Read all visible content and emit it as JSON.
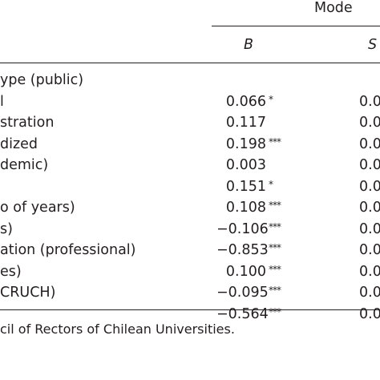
{
  "header": {
    "model_label": "Mode",
    "col_b": "B",
    "col_se": "S"
  },
  "rows": [
    {
      "label": "ype (public)",
      "b": "",
      "stars": "",
      "se": ""
    },
    {
      "label": "l",
      "b": "0.066",
      "stars": "*",
      "se": "0.0"
    },
    {
      "label": "stration",
      "b": "0.117",
      "stars": "",
      "se": "0.0"
    },
    {
      "label": "dized",
      "b": "0.198",
      "stars": "***",
      "se": "0.0"
    },
    {
      "label": "demic)",
      "b": "0.003",
      "stars": "",
      "se": "0.0"
    },
    {
      "label": "",
      "b": "0.151",
      "stars": "*",
      "se": "0.0"
    },
    {
      "label": "o of years)",
      "b": "0.108",
      "stars": "***",
      "se": "0.0"
    },
    {
      "label": "s)",
      "b": "−0.106",
      "stars": "***",
      "se": "0.0"
    },
    {
      "label": "ation (professional)",
      "b": "−0.853",
      "stars": "***",
      "se": "0.0"
    },
    {
      "label": "es)",
      "b": "0.100",
      "stars": "***",
      "se": "0.0"
    },
    {
      "label": "CRUCH)",
      "b": "−0.095",
      "stars": "***",
      "se": "0.0"
    },
    {
      "label": "",
      "b": "−0.564",
      "stars": "***",
      "se": "0.0"
    }
  ],
  "footnote": "cil of Rectors of Chilean Universities."
}
